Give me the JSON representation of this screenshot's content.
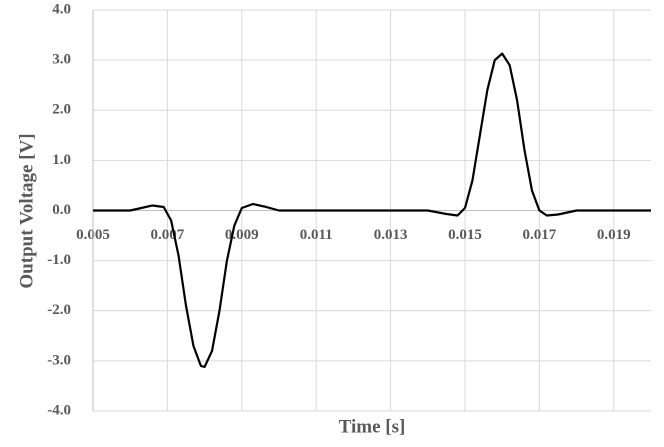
{
  "chart_data": {
    "type": "line",
    "x_label": "Time [s]",
    "y_label": "Output Voltage [V]",
    "xlim": [
      0.005,
      0.02
    ],
    "ylim": [
      -4,
      4
    ],
    "xticks": [
      0.005,
      0.007,
      0.009,
      0.011,
      0.013,
      0.015,
      0.017,
      0.019
    ],
    "yticks": [
      {
        "value": -4,
        "label": "-4.0"
      },
      {
        "value": -3,
        "label": "-3.0"
      },
      {
        "value": -2,
        "label": "-2.0"
      },
      {
        "value": -1,
        "label": "-1.0"
      },
      {
        "value": 0,
        "label": "0.0"
      },
      {
        "value": 1,
        "label": "1.0"
      },
      {
        "value": 2,
        "label": "2.0"
      },
      {
        "value": 3,
        "label": "3.0"
      },
      {
        "value": 4,
        "label": "4.0"
      }
    ],
    "grid": true,
    "series": [
      {
        "color": "#000000",
        "x": [
          0.005,
          0.0055,
          0.006,
          0.0063,
          0.0066,
          0.0069,
          0.0071,
          0.0073,
          0.0075,
          0.0077,
          0.0079,
          0.008,
          0.0082,
          0.0084,
          0.0086,
          0.0088,
          0.009,
          0.0093,
          0.0096,
          0.01,
          0.011,
          0.012,
          0.013,
          0.014,
          0.0145,
          0.0148,
          0.015,
          0.0152,
          0.0154,
          0.0156,
          0.0158,
          0.016,
          0.0162,
          0.0164,
          0.0166,
          0.0168,
          0.017,
          0.0172,
          0.0175,
          0.018,
          0.019,
          0.02
        ],
        "values": [
          0,
          0,
          0,
          0.05,
          0.1,
          0.07,
          -0.2,
          -0.9,
          -1.9,
          -2.7,
          -3.1,
          -3.12,
          -2.8,
          -2.0,
          -1.0,
          -0.3,
          0.05,
          0.13,
          0.08,
          0,
          0,
          0,
          0,
          0,
          -0.07,
          -0.1,
          0.05,
          0.6,
          1.5,
          2.4,
          3.0,
          3.13,
          2.9,
          2.2,
          1.2,
          0.4,
          0,
          -0.1,
          -0.08,
          0,
          0,
          0
        ]
      }
    ]
  }
}
